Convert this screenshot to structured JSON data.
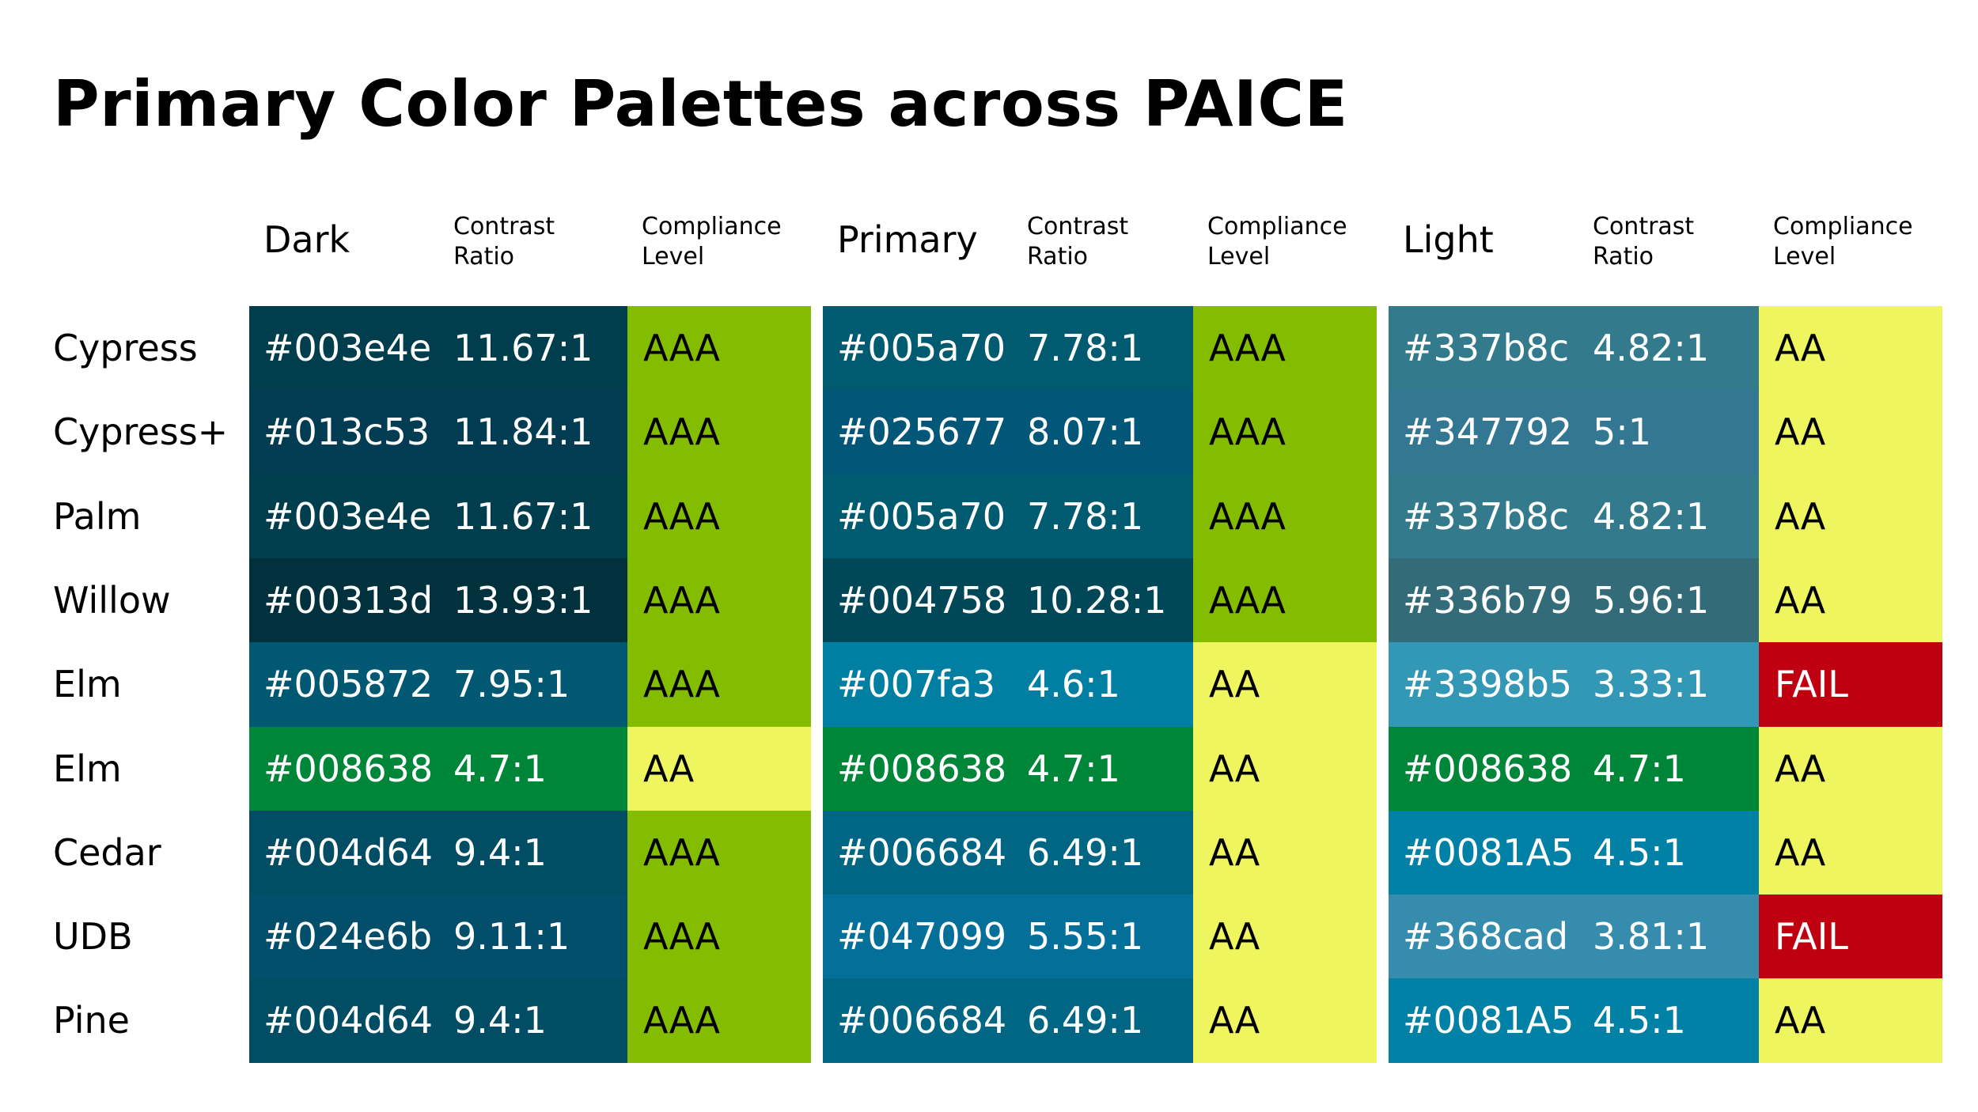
{
  "title": "Primary Color Palettes across PAICE",
  "columns": [
    {
      "name": "Dark",
      "contrast_label": "Contrast\nRatio",
      "compliance_label": "Compliance\nLevel"
    },
    {
      "name": "Primary",
      "contrast_label": "Contrast\nRatio",
      "compliance_label": "Compliance\nLevel"
    },
    {
      "name": "Light",
      "contrast_label": "Contrast\nRatio",
      "compliance_label": "Compliance\nLevel"
    }
  ],
  "compliance_colors": {
    "AAA": "#84bd00",
    "AA": "#eef55e",
    "FAIL": "#bf0010"
  },
  "compliance_text_colors": {
    "AAA": "#000000",
    "AA": "#000000",
    "FAIL": "#ffffff"
  },
  "rows": [
    {
      "label": "Cypress",
      "cells": [
        {
          "hex": "#003e4e",
          "ratio": "11.67:1",
          "level": "AAA",
          "color": "#003e4e"
        },
        {
          "hex": "#005a70",
          "ratio": "7.78:1",
          "level": "AAA",
          "color": "#005a70"
        },
        {
          "hex": "#337b8c",
          "ratio": "4.82:1",
          "level": "AA",
          "color": "#337b8c"
        }
      ]
    },
    {
      "label": "Cypress+",
      "cells": [
        {
          "hex": "#013c53",
          "ratio": "11.84:1",
          "level": "AAA",
          "color": "#013c53"
        },
        {
          "hex": "#025677",
          "ratio": "8.07:1",
          "level": "AAA",
          "color": "#025677"
        },
        {
          "hex": "#347792",
          "ratio": "5:1",
          "level": "AA",
          "color": "#347792"
        }
      ]
    },
    {
      "label": "Palm",
      "cells": [
        {
          "hex": "#003e4e",
          "ratio": "11.67:1",
          "level": "AAA",
          "color": "#003e4e"
        },
        {
          "hex": "#005a70",
          "ratio": "7.78:1",
          "level": "AAA",
          "color": "#005a70"
        },
        {
          "hex": "#337b8c",
          "ratio": "4.82:1",
          "level": "AA",
          "color": "#337b8c"
        }
      ]
    },
    {
      "label": "Willow",
      "cells": [
        {
          "hex": "#00313d",
          "ratio": "13.93:1",
          "level": "AAA",
          "color": "#00313d"
        },
        {
          "hex": "#004758",
          "ratio": "10.28:1",
          "level": "AAA",
          "color": "#004758"
        },
        {
          "hex": "#336b79",
          "ratio": "5.96:1",
          "level": "AA",
          "color": "#336b79"
        }
      ]
    },
    {
      "label": "Elm",
      "cells": [
        {
          "hex": "#005872",
          "ratio": "7.95:1",
          "level": "AAA",
          "color": "#005872"
        },
        {
          "hex": "#007fa3",
          "ratio": "4.6:1",
          "level": "AA",
          "color": "#007fa3"
        },
        {
          "hex": "#3398b5",
          "ratio": "3.33:1",
          "level": "FAIL",
          "color": "#3398b5"
        }
      ]
    },
    {
      "label": "Elm",
      "cells": [
        {
          "hex": "#008638",
          "ratio": "4.7:1",
          "level": "AA",
          "color": "#008638"
        },
        {
          "hex": "#008638",
          "ratio": "4.7:1",
          "level": "AA",
          "color": "#008638"
        },
        {
          "hex": "#008638",
          "ratio": "4.7:1",
          "level": "AA",
          "color": "#008638"
        }
      ]
    },
    {
      "label": "Cedar",
      "cells": [
        {
          "hex": "#004d64",
          "ratio": "9.4:1",
          "level": "AAA",
          "color": "#004d64"
        },
        {
          "hex": "#006684",
          "ratio": "6.49:1",
          "level": "AA",
          "color": "#006684"
        },
        {
          "hex": "#0081A5",
          "ratio": "4.5:1",
          "level": "AA",
          "color": "#0081A5"
        }
      ]
    },
    {
      "label": "UDB",
      "cells": [
        {
          "hex": "#024e6b",
          "ratio": "9.11:1",
          "level": "AAA",
          "color": "#024e6b"
        },
        {
          "hex": "#047099",
          "ratio": "5.55:1",
          "level": "AA",
          "color": "#047099"
        },
        {
          "hex": "#368cad",
          "ratio": "3.81:1",
          "level": "FAIL",
          "color": "#368cad"
        }
      ]
    },
    {
      "label": "Pine",
      "cells": [
        {
          "hex": "#004d64",
          "ratio": "9.4:1",
          "level": "AAA",
          "color": "#004d64"
        },
        {
          "hex": "#006684",
          "ratio": "6.49:1",
          "level": "AA",
          "color": "#006684"
        },
        {
          "hex": "#0081A5",
          "ratio": "4.5:1",
          "level": "AA",
          "color": "#0081A5"
        }
      ]
    }
  ]
}
